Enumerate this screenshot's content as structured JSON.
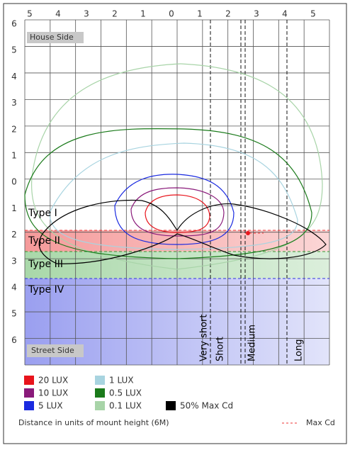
{
  "top_labels": [
    "5",
    "4",
    "3",
    "2",
    "1",
    "0",
    "1",
    "2",
    "3",
    "4",
    "5"
  ],
  "left_labels": [
    "6",
    "5",
    "4",
    "3",
    "2",
    "1",
    "0",
    "1",
    "2",
    "3",
    "4",
    "5",
    "6"
  ],
  "house_side": "House Side",
  "street_side": "Street Side",
  "types": [
    "Type I",
    "Type II",
    "Type III",
    "Type IV"
  ],
  "distances": [
    "Very short",
    "Short",
    "Medium",
    "Long"
  ],
  "legend": [
    {
      "label": "20 LUX",
      "color": "#e8141c"
    },
    {
      "label": "1 LUX",
      "color": "#a8d4e0"
    },
    {
      "label": "10 LUX",
      "color": "#8a1a7a"
    },
    {
      "label": "0.5 LUX",
      "color": "#1a7a1a"
    },
    {
      "label": "5 LUX",
      "color": "#1a2ae0"
    },
    {
      "label": "0.1 LUX",
      "color": "#a8d4a8"
    },
    {
      "label": "50% Max Cd",
      "color": "#000000"
    }
  ],
  "footnote": "Distance in units of mount height (6M)",
  "max_cd": "Max Cd"
}
